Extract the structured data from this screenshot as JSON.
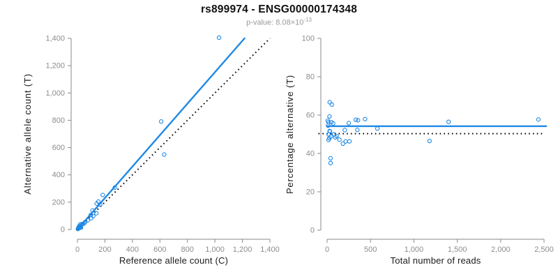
{
  "header": {
    "title": "rs899974 - ENSG00000174348",
    "p_value": {
      "label": "p-value: ",
      "base": "8.08×10",
      "exponent": "-13"
    }
  },
  "colors": {
    "accent": "#1E88E5",
    "dotted_line": "#000000",
    "axis_line": "#8a8a8a",
    "tick_label": "#8c8c8c",
    "axis_title": "#1a1a1a",
    "subtitle": "#9a9a9a",
    "title": "#111111",
    "background": "#ffffff"
  },
  "chart_data": [
    {
      "type": "scatter",
      "name": "allele-counts-scatter",
      "xlabel": "Reference allele count (C)",
      "ylabel": "Alternative allele count (T)",
      "xlim": [
        0,
        1400
      ],
      "ylim": [
        0,
        1400
      ],
      "xticks": [
        0,
        200,
        400,
        600,
        800,
        1000,
        1200,
        1400
      ],
      "yticks": [
        0,
        200,
        400,
        600,
        800,
        1000,
        1200,
        1400
      ],
      "grid": false,
      "legend_position": "none",
      "marker": "open-circle",
      "points": [
        [
          3,
          4
        ],
        [
          5,
          6
        ],
        [
          7,
          9
        ],
        [
          8,
          8
        ],
        [
          9,
          8
        ],
        [
          10,
          20
        ],
        [
          13,
          12
        ],
        [
          14,
          15
        ],
        [
          11,
          16
        ],
        [
          16,
          17
        ],
        [
          19,
          36
        ],
        [
          21,
          27
        ],
        [
          22,
          21
        ],
        [
          25,
          15
        ],
        [
          26,
          14
        ],
        [
          31,
          39
        ],
        [
          40,
          40
        ],
        [
          49,
          46
        ],
        [
          56,
          54
        ],
        [
          75,
          67
        ],
        [
          97,
          106
        ],
        [
          100,
          82
        ],
        [
          110,
          139
        ],
        [
          115,
          99
        ],
        [
          138,
          119
        ],
        [
          140,
          190
        ],
        [
          152,
          204
        ],
        [
          166,
          182
        ],
        [
          184,
          253
        ],
        [
          272,
          307
        ],
        [
          609,
          791
        ],
        [
          631,
          549
        ],
        [
          1030,
          1405
        ]
      ],
      "lines": [
        {
          "name": "regression-line",
          "style": "solid",
          "color": "accent",
          "from": [
            0,
            0
          ],
          "to": [
            1215,
            1400
          ]
        },
        {
          "name": "identity-line",
          "style": "dotted",
          "color": "black",
          "from": [
            0,
            0
          ],
          "to": [
            1400,
            1400
          ]
        }
      ]
    },
    {
      "type": "scatter",
      "name": "percentage-vs-coverage-scatter",
      "xlabel": "Total number of reads",
      "ylabel": "Percentage alternative (T)",
      "xlim": [
        0,
        2500
      ],
      "ylim": [
        0,
        100
      ],
      "xticks": [
        0,
        500,
        1000,
        1500,
        2000,
        2500
      ],
      "yticks": [
        0,
        20,
        40,
        60,
        80,
        100
      ],
      "grid": false,
      "legend_position": "none",
      "marker": "open-circle",
      "points": [
        [
          7,
          57.1
        ],
        [
          11,
          54.5
        ],
        [
          16,
          56.3
        ],
        [
          16,
          50.0
        ],
        [
          17,
          47.1
        ],
        [
          30,
          66.7
        ],
        [
          25,
          48.0
        ],
        [
          29,
          51.7
        ],
        [
          27,
          59.3
        ],
        [
          33,
          51.5
        ],
        [
          55,
          65.5
        ],
        [
          48,
          56.3
        ],
        [
          43,
          48.8
        ],
        [
          40,
          37.5
        ],
        [
          40,
          35.0
        ],
        [
          70,
          55.7
        ],
        [
          80,
          50.0
        ],
        [
          95,
          48.4
        ],
        [
          110,
          49.1
        ],
        [
          142,
          47.2
        ],
        [
          203,
          52.2
        ],
        [
          182,
          45.1
        ],
        [
          249,
          55.8
        ],
        [
          214,
          46.3
        ],
        [
          257,
          46.3
        ],
        [
          330,
          57.6
        ],
        [
          356,
          57.3
        ],
        [
          348,
          52.3
        ],
        [
          437,
          57.9
        ],
        [
          579,
          53.0
        ],
        [
          1180,
          46.5
        ],
        [
          1400,
          56.5
        ],
        [
          2435,
          57.7
        ]
      ],
      "lines": [
        {
          "name": "mean-line",
          "style": "solid",
          "color": "accent",
          "from": [
            0,
            54.2
          ],
          "to": [
            2525,
            54.2
          ]
        },
        {
          "name": "reference-line",
          "style": "dotted",
          "color": "black",
          "from": [
            -100,
            50.3
          ],
          "to": [
            2500,
            50.3
          ]
        }
      ]
    }
  ]
}
